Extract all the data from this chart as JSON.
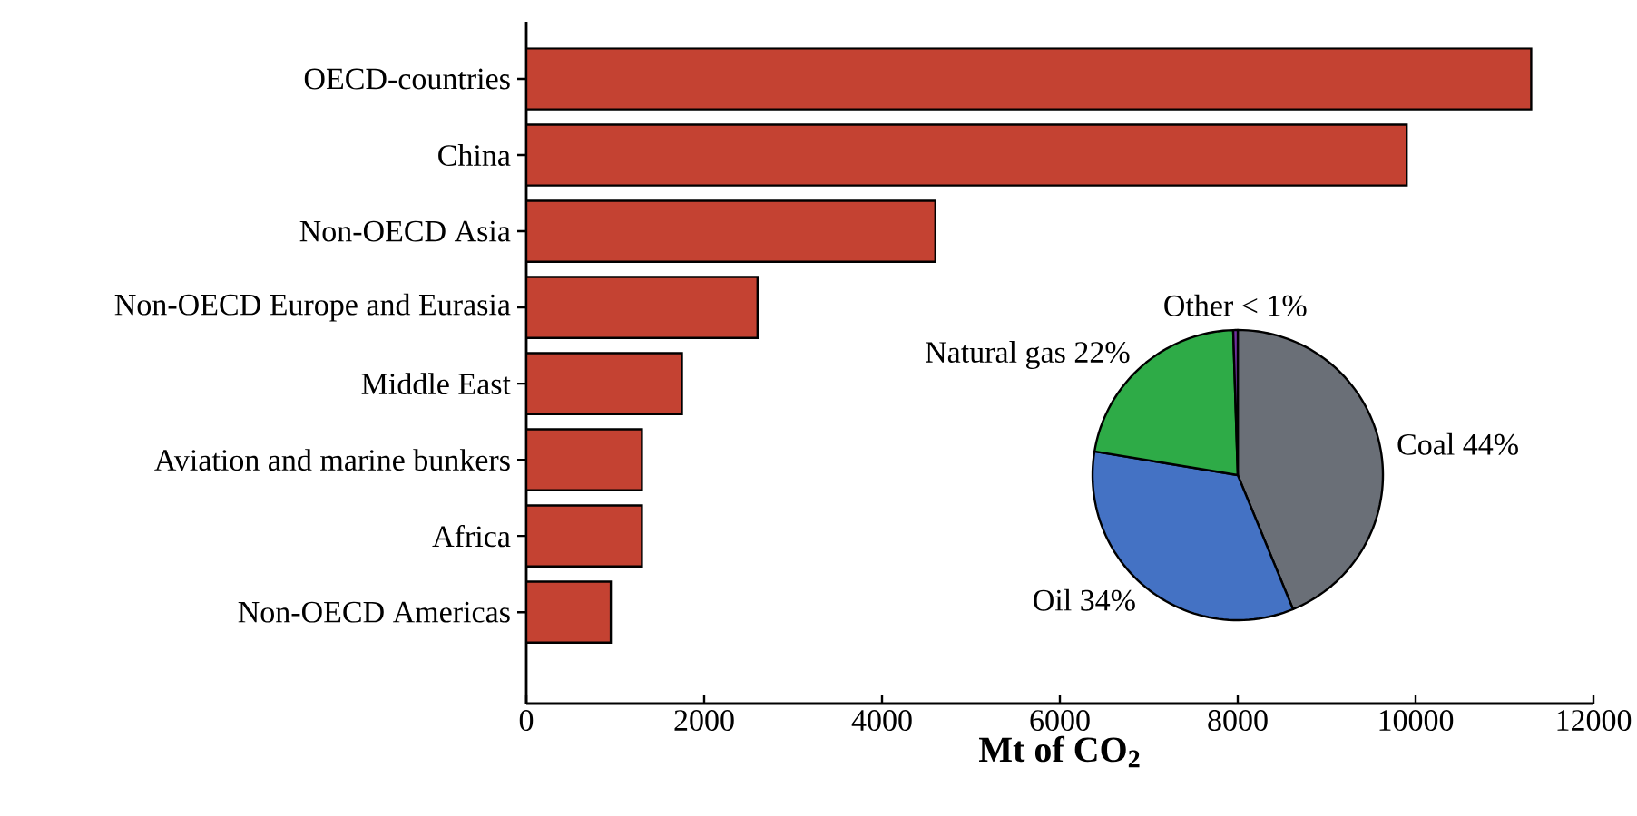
{
  "chart_data": [
    {
      "type": "bar",
      "orientation": "horizontal",
      "categories": [
        "OECD-countries",
        "China",
        "Non-OECD Asia",
        "Non-OECD Europe and Eurasia",
        "Middle East",
        "Aviation and marine bunkers",
        "Africa",
        "Non-OECD Americas"
      ],
      "values": [
        11300,
        9900,
        4600,
        2600,
        1750,
        1300,
        1300,
        950
      ],
      "color": "#c44232",
      "xlabel": "Mt of CO$_{2}$",
      "xlim": [
        0,
        12000
      ],
      "xticks": [
        0,
        2000,
        4000,
        6000,
        8000,
        10000,
        12000
      ]
    },
    {
      "type": "pie",
      "categories": [
        "Coal 44%",
        "Oil 34%",
        "Natural gas 22%",
        "Other < 1%"
      ],
      "values": [
        44,
        34,
        22,
        0.5
      ],
      "colors": [
        "#6a6f77",
        "#4472c4",
        "#2eab47",
        "#7030a0"
      ]
    }
  ]
}
